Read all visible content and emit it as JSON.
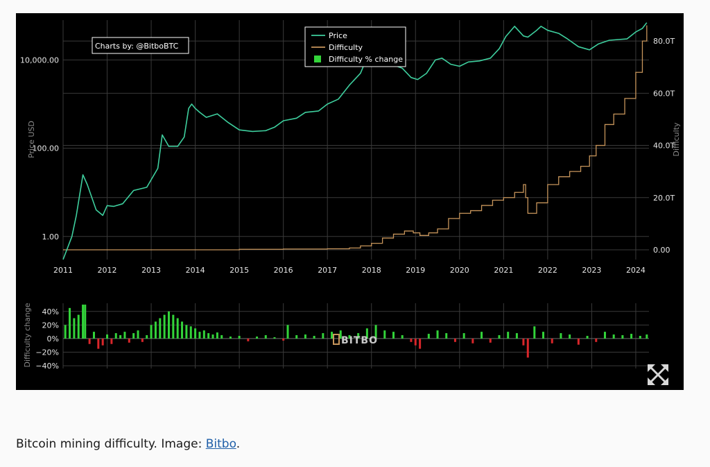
{
  "chart_data": [
    {
      "type": "line",
      "credit": "Charts by: @BitboBTC",
      "x_ticks": [
        "2011",
        "2012",
        "2013",
        "2014",
        "2015",
        "2016",
        "2017",
        "2018",
        "2019",
        "2020",
        "2021",
        "2022",
        "2023",
        "2024"
      ],
      "xlim": [
        2011.0,
        2024.3
      ],
      "y_left": {
        "label": "Price USD",
        "scale": "log",
        "ticks": [
          "1.00",
          "100.00",
          "10,000.00"
        ],
        "tick_values": [
          1,
          100,
          10000
        ],
        "range": [
          0.3,
          80000
        ]
      },
      "y_right": {
        "label": "Difficulty",
        "ticks": [
          "0.00",
          "20.0T",
          "40.0T",
          "60.0T",
          "80.0T"
        ],
        "tick_values": [
          0,
          20,
          40,
          60,
          80
        ],
        "unit": "T",
        "range": [
          0,
          88
        ]
      },
      "legend": {
        "placement": "top-center",
        "entries": [
          "Price",
          "Difficulty",
          "Difficulty % change"
        ]
      },
      "grid": true,
      "series": [
        {
          "name": "Price",
          "color": "#3ecf9e",
          "x": [
            2011.0,
            2011.2,
            2011.3,
            2011.45,
            2011.55,
            2011.75,
            2011.9,
            2012.0,
            2012.15,
            2012.35,
            2012.6,
            2012.9,
            2013.15,
            2013.25,
            2013.4,
            2013.6,
            2013.75,
            2013.85,
            2013.92,
            2014.0,
            2014.1,
            2014.25,
            2014.5,
            2014.75,
            2015.0,
            2015.3,
            2015.6,
            2015.8,
            2016.0,
            2016.3,
            2016.5,
            2016.8,
            2017.0,
            2017.25,
            2017.5,
            2017.75,
            2017.95,
            2018.05,
            2018.2,
            2018.45,
            2018.7,
            2018.9,
            2019.05,
            2019.25,
            2019.45,
            2019.6,
            2019.8,
            2020.0,
            2020.2,
            2020.45,
            2020.7,
            2020.9,
            2021.05,
            2021.25,
            2021.45,
            2021.55,
            2021.75,
            2021.85,
            2022.0,
            2022.25,
            2022.45,
            2022.7,
            2022.95,
            2023.15,
            2023.4,
            2023.6,
            2023.8,
            2024.0,
            2024.15,
            2024.25
          ],
          "y": [
            0.3,
            1.0,
            3.0,
            25.0,
            15.0,
            4.0,
            3.0,
            5.0,
            4.8,
            5.5,
            11.0,
            13.0,
            35.0,
            200.0,
            110.0,
            110.0,
            180.0,
            800.0,
            1000.0,
            800.0,
            650.0,
            500.0,
            600.0,
            380.0,
            260.0,
            240.0,
            250.0,
            300.0,
            420.0,
            480.0,
            650.0,
            700.0,
            1000.0,
            1300.0,
            2700.0,
            5000.0,
            15000.0,
            11000.0,
            9000.0,
            8000.0,
            6500.0,
            4000.0,
            3600.0,
            5000.0,
            10000.0,
            11000.0,
            8000.0,
            7200.0,
            9000.0,
            9500.0,
            11000.0,
            18000.0,
            34000.0,
            58000.0,
            35000.0,
            33000.0,
            47000.0,
            58000.0,
            47000.0,
            40000.0,
            30000.0,
            20000.0,
            17000.0,
            23000.0,
            28000.0,
            29000.0,
            30000.0,
            43000.0,
            52000.0,
            70000.0
          ]
        },
        {
          "name": "Difficulty",
          "color": "#c7955b",
          "x": [
            2011.0,
            2013.0,
            2014.0,
            2015.0,
            2016.0,
            2017.0,
            2017.5,
            2017.75,
            2018.0,
            2018.25,
            2018.5,
            2018.75,
            2018.95,
            2019.1,
            2019.3,
            2019.5,
            2019.75,
            2020.0,
            2020.25,
            2020.5,
            2020.75,
            2021.0,
            2021.25,
            2021.45,
            2021.5,
            2021.55,
            2021.75,
            2022.0,
            2022.25,
            2022.5,
            2022.75,
            2022.95,
            2023.1,
            2023.3,
            2023.5,
            2023.75,
            2024.0,
            2024.15,
            2024.25
          ],
          "y": [
            0.0,
            0.0,
            0.0,
            0.2,
            0.3,
            0.4,
            0.7,
            1.5,
            2.5,
            4.5,
            6.0,
            7.2,
            6.5,
            5.5,
            6.5,
            8.0,
            12.0,
            14.0,
            15.0,
            17.0,
            19.0,
            20.0,
            22.0,
            25.0,
            20.0,
            14.0,
            18.0,
            25.0,
            28.0,
            30.0,
            32.0,
            36.0,
            40.0,
            48.0,
            52.0,
            58.0,
            68.0,
            80.0,
            86.0
          ]
        },
        {
          "name": "Difficulty % change",
          "color": "#33d43a",
          "negative_color": "#d9262a",
          "axis_label": "Difficulty change",
          "ticks": [
            "40%",
            "20%",
            "0%",
            "−20%",
            "−40%"
          ],
          "tick_values": [
            40,
            20,
            0,
            -20,
            -40
          ],
          "range": [
            -44,
            52
          ],
          "x": [
            2011.05,
            2011.15,
            2011.25,
            2011.35,
            2011.45,
            2011.5,
            2011.6,
            2011.7,
            2011.8,
            2011.9,
            2012.0,
            2012.1,
            2012.2,
            2012.3,
            2012.4,
            2012.5,
            2012.6,
            2012.7,
            2012.8,
            2012.9,
            2013.0,
            2013.1,
            2013.2,
            2013.3,
            2013.4,
            2013.5,
            2013.6,
            2013.7,
            2013.8,
            2013.9,
            2014.0,
            2014.1,
            2014.2,
            2014.3,
            2014.4,
            2014.5,
            2014.6,
            2014.8,
            2015.0,
            2015.2,
            2015.4,
            2015.6,
            2015.8,
            2016.0,
            2016.1,
            2016.3,
            2016.5,
            2016.7,
            2016.9,
            2017.1,
            2017.3,
            2017.5,
            2017.7,
            2017.9,
            2018.1,
            2018.3,
            2018.5,
            2018.7,
            2018.9,
            2019.0,
            2019.1,
            2019.3,
            2019.5,
            2019.7,
            2019.9,
            2020.1,
            2020.3,
            2020.5,
            2020.7,
            2020.9,
            2021.1,
            2021.3,
            2021.45,
            2021.55,
            2021.7,
            2021.9,
            2022.1,
            2022.3,
            2022.5,
            2022.7,
            2022.9,
            2023.1,
            2023.3,
            2023.5,
            2023.7,
            2023.9,
            2024.1,
            2024.25
          ],
          "y": [
            20,
            45,
            30,
            35,
            50,
            50,
            -8,
            10,
            -15,
            -10,
            6,
            -8,
            8,
            5,
            10,
            -6,
            8,
            12,
            -5,
            5,
            20,
            25,
            30,
            35,
            40,
            35,
            30,
            25,
            20,
            18,
            15,
            10,
            12,
            8,
            6,
            9,
            5,
            3,
            4,
            -4,
            3,
            5,
            2,
            -3,
            20,
            5,
            6,
            4,
            8,
            10,
            12,
            5,
            8,
            15,
            20,
            12,
            10,
            5,
            -5,
            -10,
            -15,
            7,
            12,
            8,
            -5,
            8,
            -7,
            10,
            -6,
            5,
            10,
            8,
            -10,
            -28,
            18,
            10,
            -7,
            8,
            6,
            -9,
            4,
            -5,
            10,
            6,
            5,
            7,
            4,
            6
          ]
        }
      ]
    }
  ],
  "watermark": "BITBO",
  "caption": {
    "text": "Bitcoin mining difficulty. Image: ",
    "link": "Bitbo",
    "end": "."
  }
}
